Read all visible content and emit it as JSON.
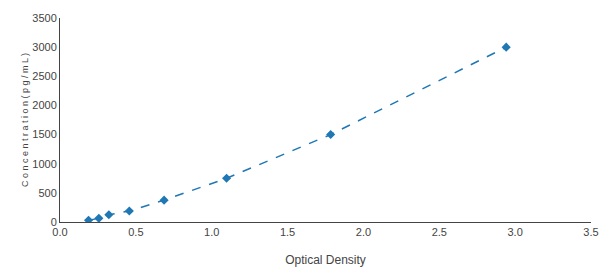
{
  "chart_data": {
    "type": "line",
    "x": [
      0.188,
      0.256,
      0.322,
      0.457,
      0.686,
      1.098,
      1.784,
      2.941
    ],
    "values": [
      31.25,
      62.5,
      125,
      187.5,
      375,
      750,
      1500,
      3000
    ],
    "xlabel": "Optical Density",
    "ylabel": "C o n c e n t r a t i o n ( p g / m L )",
    "xlim": [
      0,
      3.5
    ],
    "ylim": [
      0,
      3500
    ],
    "xticks": [
      {
        "value": 0,
        "label": "0.0"
      },
      0.5,
      {
        "value": 1,
        "label": "1.0"
      },
      1.5,
      {
        "value": 2,
        "label": "2.0"
      },
      2.5,
      {
        "value": 3,
        "label": "3.0"
      },
      3.5
    ],
    "yticks": [
      0,
      500,
      1000,
      1500,
      2000,
      2500,
      3000,
      3500
    ],
    "marker": "diamond",
    "line_style": "dash",
    "grid": false
  }
}
